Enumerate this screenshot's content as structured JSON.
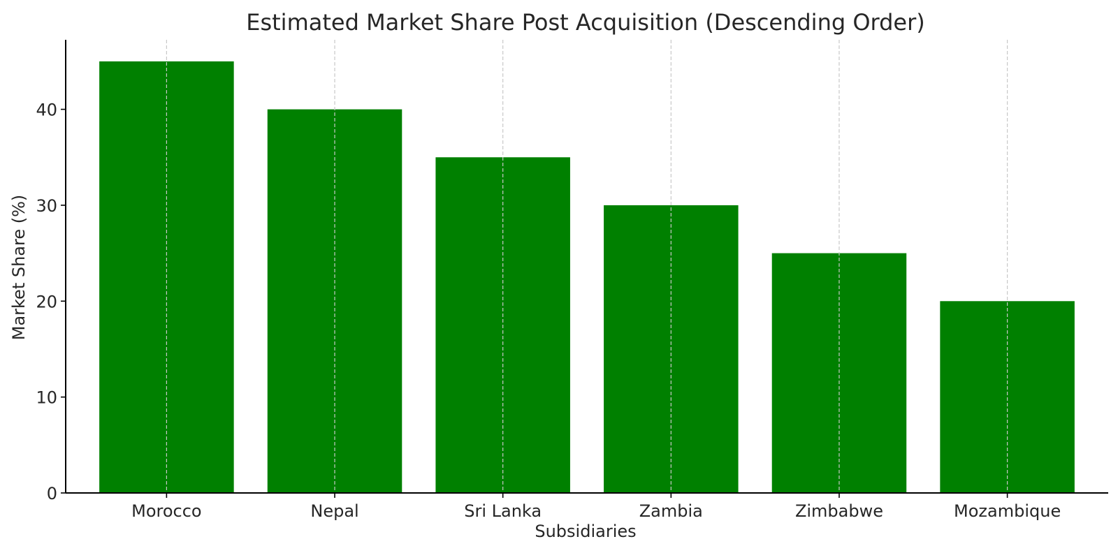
{
  "chart_data": {
    "type": "bar",
    "title": "Estimated Market Share Post Acquisition (Descending Order)",
    "xlabel": "Subsidiaries",
    "ylabel": "Market Share (%)",
    "categories": [
      "Morocco",
      "Nepal",
      "Sri Lanka",
      "Zambia",
      "Zimbabwe",
      "Mozambique"
    ],
    "values": [
      45,
      40,
      35,
      30,
      25,
      20
    ],
    "ylim": [
      0,
      47.25
    ],
    "yticks": [
      0,
      10,
      20,
      30,
      40
    ],
    "grid": "x-axis dashed",
    "colors": {
      "bar": "#008000",
      "grid": "#c8c8c8",
      "axis": "#000000",
      "text": "#262626"
    }
  }
}
